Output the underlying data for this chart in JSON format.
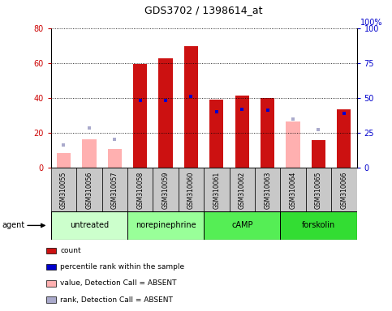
{
  "title": "GDS3702 / 1398614_at",
  "samples": [
    "GSM310055",
    "GSM310056",
    "GSM310057",
    "GSM310058",
    "GSM310059",
    "GSM310060",
    "GSM310061",
    "GSM310062",
    "GSM310063",
    "GSM310064",
    "GSM310065",
    "GSM310066"
  ],
  "groups": [
    {
      "label": "untreated",
      "color": "#aaffaa",
      "indices": [
        0,
        1,
        2
      ]
    },
    {
      "label": "norepinephrine",
      "color": "#aaffaa",
      "indices": [
        3,
        4,
        5
      ]
    },
    {
      "label": "cAMP",
      "color": "#44ff44",
      "indices": [
        6,
        7,
        8
      ]
    },
    {
      "label": "forskolin",
      "color": "#44ff44",
      "indices": [
        9,
        10,
        11
      ]
    }
  ],
  "count_values": [
    null,
    null,
    null,
    59.5,
    62.5,
    69.5,
    39.0,
    41.5,
    40.0,
    null,
    16.0,
    33.5
  ],
  "count_absent": [
    8.5,
    16.5,
    11.0,
    null,
    null,
    null,
    null,
    null,
    null,
    26.5,
    null,
    null
  ],
  "rank_values": [
    null,
    null,
    null,
    48.0,
    48.0,
    51.0,
    40.0,
    42.0,
    41.5,
    null,
    null,
    39.0
  ],
  "rank_absent": [
    16.5,
    28.5,
    20.5,
    null,
    null,
    null,
    null,
    null,
    null,
    35.0,
    27.5,
    null
  ],
  "ylim_left": [
    0,
    80
  ],
  "ylim_right": [
    0,
    100
  ],
  "yticks_left": [
    0,
    20,
    40,
    60,
    80
  ],
  "yticks_right": [
    0,
    25,
    50,
    75,
    100
  ],
  "left_tick_color": "#cc0000",
  "right_tick_color": "#0000cc",
  "bar_color_present": "#cc1111",
  "bar_color_absent": "#ffb0b0",
  "dot_color_present": "#0000cc",
  "dot_color_absent": "#aaaacc",
  "legend_labels": [
    "count",
    "percentile rank within the sample",
    "value, Detection Call = ABSENT",
    "rank, Detection Call = ABSENT"
  ],
  "legend_colors": [
    "#cc1111",
    "#0000cc",
    "#ffb0b0",
    "#aaaacc"
  ],
  "tick_area_color": "#c8c8c8",
  "group_border_color": "#000000"
}
